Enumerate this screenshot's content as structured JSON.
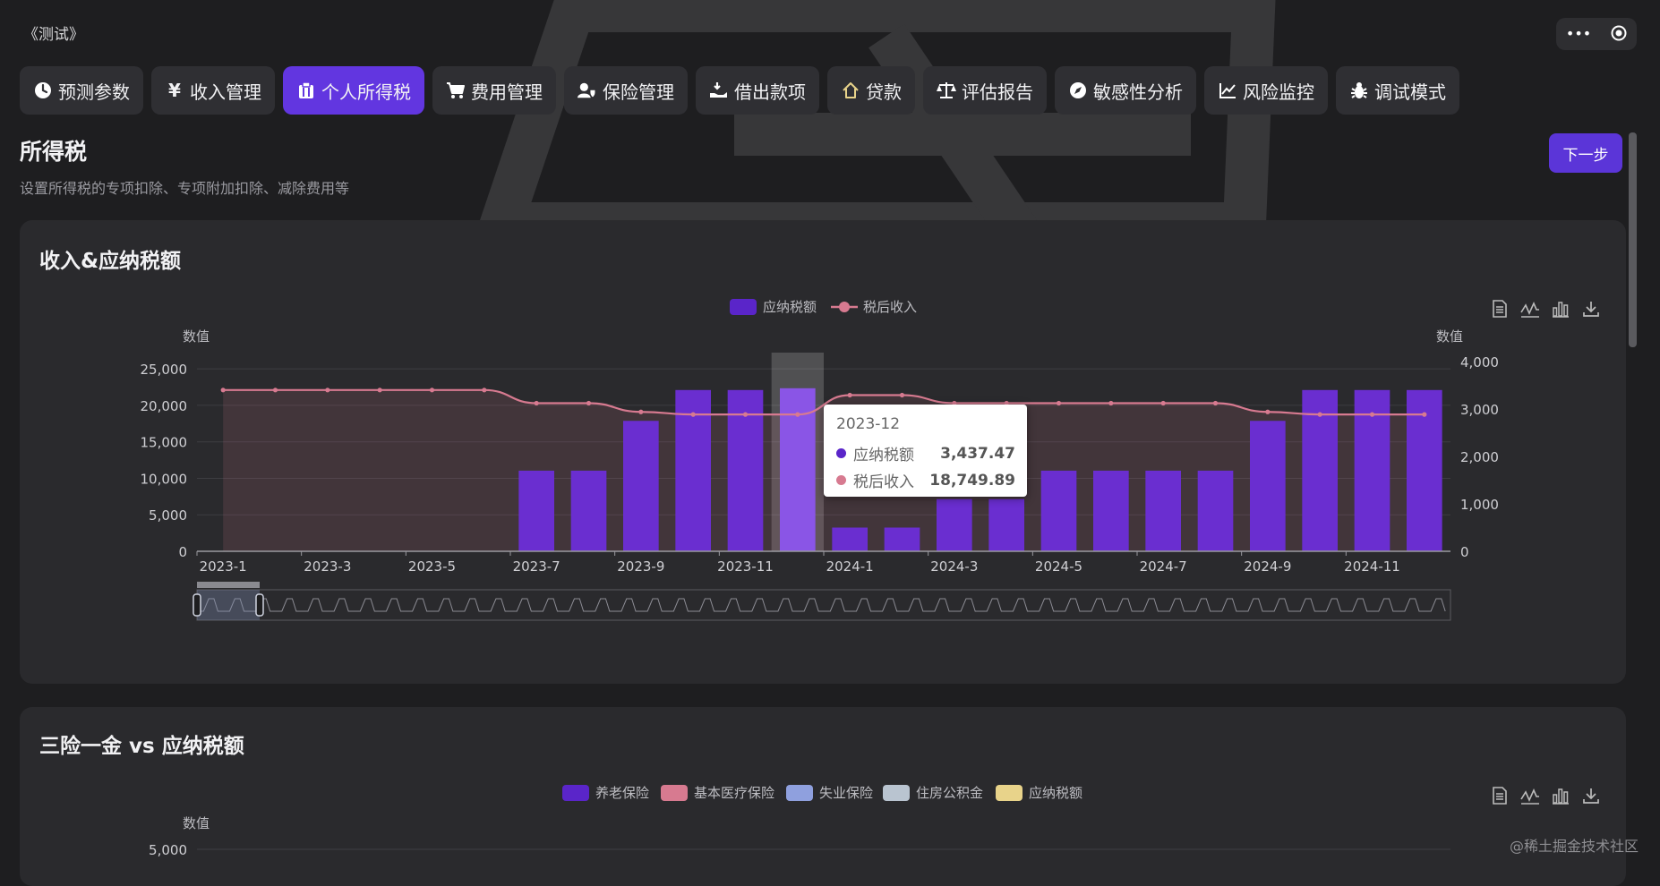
{
  "app": {
    "title": "《测试》",
    "window_controls": [
      {
        "icon": "more-icon"
      },
      {
        "icon": "record-icon"
      }
    ]
  },
  "tabs": [
    {
      "label": "预测参数",
      "icon": "clock-icon",
      "active": false
    },
    {
      "label": "收入管理",
      "icon": "yen-icon",
      "active": false
    },
    {
      "label": "个人所得税",
      "icon": "clipboard-icon",
      "active": true
    },
    {
      "label": "费用管理",
      "icon": "cart-icon",
      "active": false
    },
    {
      "label": "保险管理",
      "icon": "user-shield-icon",
      "active": false
    },
    {
      "label": "借出款项",
      "icon": "hand-coin-icon",
      "active": false
    },
    {
      "label": "贷款",
      "icon": "house-icon",
      "active": false
    },
    {
      "label": "评估报告",
      "icon": "scale-icon",
      "active": false
    },
    {
      "label": "敏感性分析",
      "icon": "compass-icon",
      "active": false
    },
    {
      "label": "风险监控",
      "icon": "line-chart-icon",
      "active": false
    },
    {
      "label": "调试模式",
      "icon": "bug-icon",
      "active": false
    }
  ],
  "page": {
    "title": "所得税",
    "subtitle": "设置所得税的专项扣除、专项附加扣除、减除费用等",
    "next_button": "下一步"
  },
  "colors": {
    "accent": "#6236e0",
    "bar": "#6a2ed0",
    "line": "#d77a90",
    "card": "#2a2a2d",
    "background": "#1e1e20"
  },
  "toolbox_icons": [
    "data-view-icon",
    "line-switch-icon",
    "bar-switch-icon",
    "download-icon"
  ],
  "chart1": {
    "title": "收入&应纳税额",
    "tooltip": {
      "title": "2023-12",
      "rows": [
        {
          "name": "应纳税额",
          "value": "3,437.47",
          "color": "#5a25c9"
        },
        {
          "name": "税后收入",
          "value": "18,749.89",
          "color": "#d77a90"
        }
      ]
    }
  },
  "chart2": {
    "title": "三险一金 vs 应纳税额"
  },
  "chart_data": [
    {
      "type": "bar",
      "title": "收入&应纳税额",
      "legend": [
        "应纳税额",
        "税后收入"
      ],
      "legend_position": "top-center",
      "y_left_label": "数值",
      "y_right_label": "数值",
      "y_left_ticks": [
        "0",
        "5,000",
        "10,000",
        "15,000",
        "20,000",
        "25,000"
      ],
      "y_right_ticks": [
        "0",
        "1,000",
        "2,000",
        "3,000",
        "4,000"
      ],
      "ylim_left": [
        0,
        26000
      ],
      "ylim_right": [
        0,
        4000
      ],
      "x_tick_labels": [
        "2023-1",
        "2023-3",
        "2023-5",
        "2023-7",
        "2023-9",
        "2023-11",
        "2024-1",
        "2024-3",
        "2024-5",
        "2024-7",
        "2024-9",
        "2024-11"
      ],
      "categories": [
        "2023-1",
        "2023-2",
        "2023-3",
        "2023-4",
        "2023-5",
        "2023-6",
        "2023-7",
        "2023-8",
        "2023-9",
        "2023-10",
        "2023-11",
        "2023-12",
        "2024-1",
        "2024-2",
        "2024-3",
        "2024-4",
        "2024-5",
        "2024-6",
        "2024-7",
        "2024-8",
        "2024-9",
        "2024-10",
        "2024-11",
        "2024-12"
      ],
      "series": [
        {
          "name": "应纳税额",
          "type": "bar",
          "axis": "right",
          "values": [
            0,
            0,
            0,
            0,
            0,
            0,
            1700,
            1700,
            2750,
            3400,
            3400,
            3437.47,
            500,
            500,
            1100,
            1100,
            1700,
            1700,
            1700,
            1700,
            2750,
            3400,
            3400,
            3400
          ]
        },
        {
          "name": "税后收入",
          "type": "line",
          "smooth": true,
          "axis": "left",
          "values": [
            22100,
            22100,
            22100,
            22100,
            22100,
            22100,
            20300,
            20300,
            19100,
            18750,
            18750,
            18749.89,
            21400,
            21400,
            20300,
            20300,
            20300,
            20300,
            20300,
            20300,
            19100,
            18750,
            18750,
            18750
          ]
        }
      ],
      "highlighted_category": "2023-12",
      "grid": true,
      "data_zoom": {
        "start": 0,
        "end": 5
      }
    },
    {
      "type": "bar",
      "title": "三险一金 vs 应纳税额",
      "legend": [
        "养老保险",
        "基本医疗保险",
        "失业保险",
        "住房公积金",
        "应纳税额"
      ],
      "legend_colors": [
        "#5a25c9",
        "#d77a90",
        "#8fa0de",
        "#b9c4d0",
        "#e8d38a"
      ],
      "legend_position": "top-center",
      "y_left_label": "数值",
      "y_left_ticks": [
        "5,000"
      ]
    }
  ],
  "watermark": "@稀土掘金技术社区"
}
